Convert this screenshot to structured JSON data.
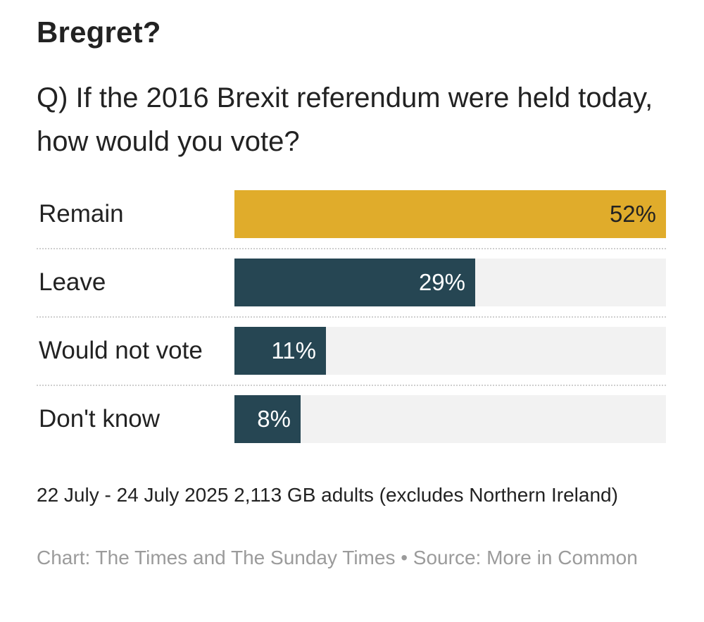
{
  "title": "Bregret?",
  "subtitle": "Q) If the 2016 Brexit referendum were held today, how would you vote?",
  "chart_data": {
    "type": "bar",
    "orientation": "horizontal",
    "categories": [
      "Remain",
      "Leave",
      "Would not vote",
      "Don't know"
    ],
    "values": [
      52,
      29,
      11,
      8
    ],
    "value_labels": [
      "52%",
      "29%",
      "11%",
      "8%"
    ],
    "unit": "%",
    "xlim": [
      0,
      52
    ],
    "colors": [
      "#e0ac2b",
      "#264653",
      "#264653",
      "#264653"
    ],
    "label_colors": [
      "#222222",
      "#ffffff",
      "#ffffff",
      "#ffffff"
    ],
    "track_color": "#f2f2f2",
    "grid": false
  },
  "note": "22 July - 24 July 2025 2,113 GB adults (excludes Northern Ireland)",
  "source": "Chart: The Times and The Sunday Times • Source: More in Common"
}
